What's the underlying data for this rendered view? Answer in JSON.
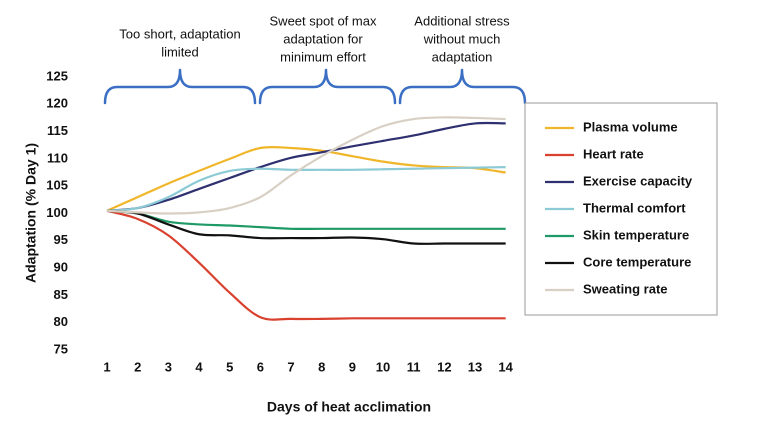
{
  "chart_data": {
    "type": "line",
    "x_label": "Days of heat acclimation",
    "y_label": "Adaptation (% Day 1)",
    "annotations": [
      [
        "Too short, adaptation",
        "limited"
      ],
      [
        "Sweet spot of max",
        "adaptation for",
        "minimum effort"
      ],
      [
        "Additional stress",
        "without much",
        "adaptation"
      ]
    ],
    "x": [
      1,
      2,
      3,
      4,
      5,
      6,
      7,
      8,
      9,
      10,
      11,
      12,
      13,
      14
    ],
    "xlim": [
      0.5,
      14.5
    ],
    "xticks": [
      1,
      2,
      3,
      4,
      5,
      6,
      7,
      8,
      9,
      10,
      11,
      12,
      13,
      14
    ],
    "ylim": [
      75,
      125
    ],
    "yticks": [
      75,
      80,
      85,
      90,
      95,
      100,
      105,
      110,
      115,
      120,
      125
    ],
    "grid": false,
    "legend": "right",
    "series": [
      {
        "name": "Plasma volume",
        "color": "#f0b62a",
        "values": [
          100.5,
          103,
          105.5,
          107.8,
          110,
          112,
          112,
          111.5,
          110.5,
          109.5,
          108.8,
          108.5,
          108.3,
          107.5
        ]
      },
      {
        "name": "Heart rate",
        "color": "#d9412e",
        "values": [
          100.5,
          99,
          96,
          91,
          85.5,
          81,
          80.7,
          80.7,
          80.8,
          80.8,
          80.8,
          80.8,
          80.8,
          80.8
        ]
      },
      {
        "name": "Exercise capacity",
        "color": "#2e3070",
        "values": [
          100.5,
          101,
          102.5,
          104.5,
          106.5,
          108.5,
          110.2,
          111.2,
          112.3,
          113.3,
          114.3,
          115.5,
          116.5,
          116.5
        ]
      },
      {
        "name": "Thermal comfort",
        "color": "#8ccbd6",
        "values": [
          100.5,
          101,
          103,
          106,
          107.8,
          108.2,
          108,
          108,
          108,
          108.1,
          108.2,
          108.3,
          108.4,
          108.5
        ]
      },
      {
        "name": "Skin temperature",
        "color": "#1f9a66",
        "values": [
          100.5,
          100,
          98.5,
          98,
          97.8,
          97.5,
          97.2,
          97.2,
          97.2,
          97.2,
          97.2,
          97.2,
          97.2,
          97.2
        ]
      },
      {
        "name": "Core temperature",
        "color": "#111111",
        "values": [
          100.5,
          100,
          98,
          96.2,
          96,
          95.5,
          95.5,
          95.5,
          95.6,
          95.3,
          94.5,
          94.5,
          94.5,
          94.5
        ]
      },
      {
        "name": "Sweating rate",
        "color": "#d8d0c4",
        "values": [
          100.5,
          100.2,
          100,
          100.2,
          101,
          103,
          107,
          110.5,
          113.5,
          116,
          117.3,
          117.6,
          117.5,
          117.3
        ]
      }
    ]
  }
}
